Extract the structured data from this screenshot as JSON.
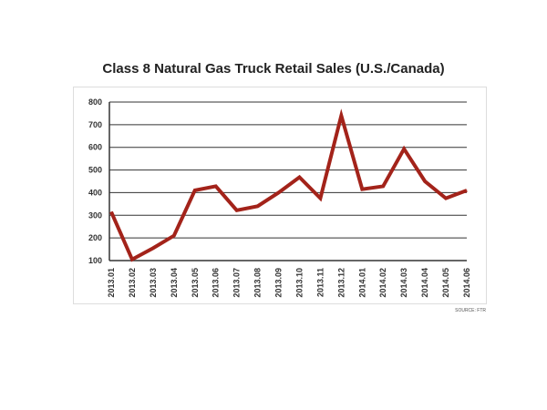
{
  "chart_data": {
    "type": "line",
    "title": "Class 8 Natural Gas Truck Retail Sales (U.S./Canada)",
    "xlabel": "",
    "ylabel": "",
    "categories": [
      "2013.01",
      "2013.02",
      "2013.03",
      "2013.04",
      "2013.05",
      "2013.06",
      "2013.07",
      "2013.08",
      "2013.09",
      "2013.10",
      "2013.11",
      "2013.12",
      "2014.01",
      "2014.02",
      "2014.03",
      "2014.04",
      "2014.05",
      "2014.06"
    ],
    "series": [
      {
        "name": "Retail Sales",
        "values": [
          315,
          105,
          155,
          210,
          410,
          428,
          322,
          340,
          400,
          468,
          375,
          740,
          415,
          428,
          593,
          450,
          375,
          410
        ]
      }
    ],
    "ylim": [
      100,
      800
    ],
    "yticks": [
      100,
      200,
      300,
      400,
      500,
      600,
      700,
      800
    ],
    "grid": true,
    "legend": "none",
    "source": "SOURCE: FTR",
    "line_color": "#a3231a"
  }
}
